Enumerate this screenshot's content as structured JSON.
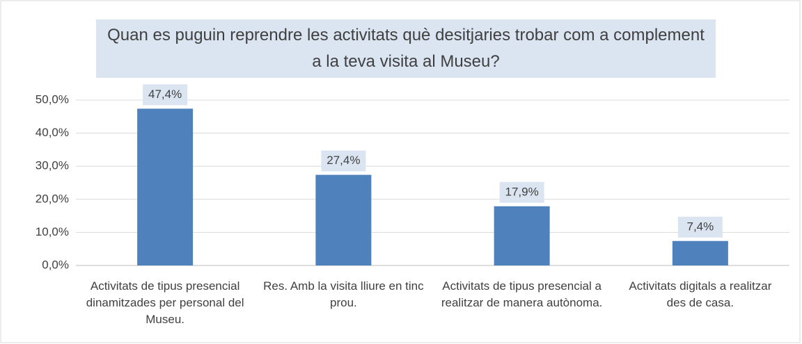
{
  "chart_data": {
    "type": "bar",
    "title": "Quan es puguin reprendre les activitats què desitjaries trobar com a complement a la teva visita al Museu?",
    "categories": [
      "Activitats de tipus presencial dinamitzades per personal del Museu.",
      "Res. Amb la visita lliure en tinc prou.",
      "Activitats de tipus presencial a realitzar de manera autònoma.",
      "Activitats digitals a realitzar des de casa."
    ],
    "values": [
      47.4,
      27.4,
      17.9,
      7.4
    ],
    "value_labels": [
      "47,4%",
      "27,4%",
      "17,9%",
      "7,4%"
    ],
    "color": "#4f81bd",
    "ylim": [
      0,
      50
    ],
    "yticks": [
      {
        "value": 0,
        "label": "0,0%"
      },
      {
        "value": 10,
        "label": "10,0%"
      },
      {
        "value": 20,
        "label": "20,0%"
      },
      {
        "value": 30,
        "label": "30,0%"
      },
      {
        "value": 40,
        "label": "40,0%"
      },
      {
        "value": 50,
        "label": "50,0%"
      }
    ],
    "grid": true
  }
}
